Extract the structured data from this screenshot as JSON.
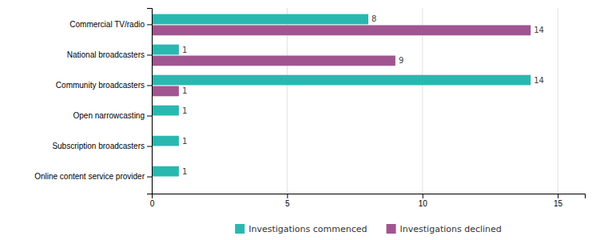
{
  "chart_data": {
    "type": "bar",
    "orientation": "horizontal",
    "categories": [
      "Online content service provider",
      "Subscription broadcasters",
      "Open narrowcasting",
      "Community broadcasters",
      "National broadcasters",
      "Commercial TV/radio"
    ],
    "series": [
      {
        "name": "Investigations commenced",
        "color": "#29b8b0",
        "values": [
          1,
          1,
          1,
          14,
          1,
          8
        ],
        "value_labels": [
          "1",
          "1",
          "1",
          "14",
          "1",
          "8"
        ]
      },
      {
        "name": "Investigations declined",
        "color": "#a05590",
        "values": [
          0,
          0,
          0,
          1,
          9,
          14
        ],
        "value_labels": [
          null,
          null,
          null,
          "1",
          "9",
          "14"
        ]
      }
    ],
    "xlim": [
      0,
      16
    ],
    "xticks": [
      0,
      5,
      10,
      15
    ],
    "grid": true,
    "legend": "bottom",
    "data_labels": true
  }
}
